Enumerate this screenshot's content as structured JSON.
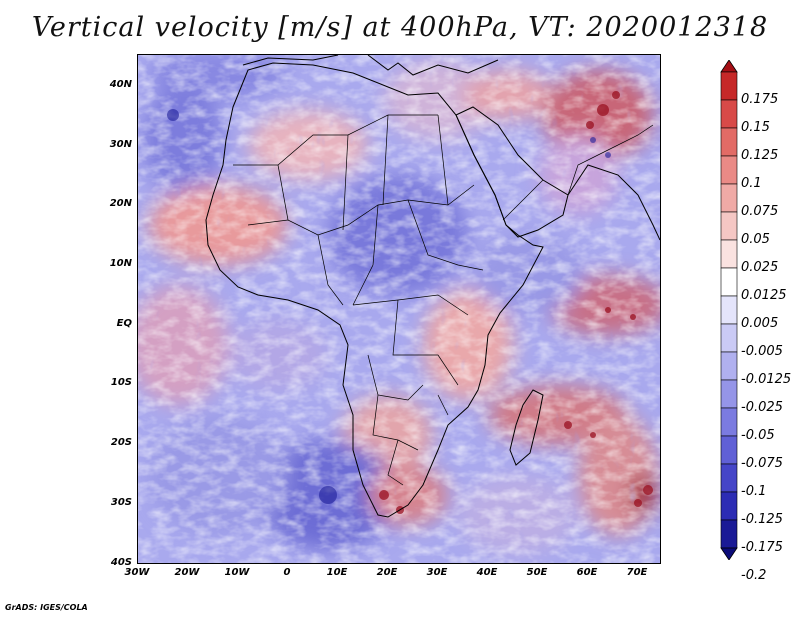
{
  "title": "Vertical velocity [m/s] at 400hPa, VT: 2020012318",
  "footer": "GrADS: IGES/COLA",
  "map": {
    "lon_range": [
      -30,
      75
    ],
    "lat_range": [
      -40,
      45
    ],
    "lat_labels": [
      "40N",
      "30N",
      "20N",
      "10N",
      "EQ",
      "10S",
      "20S",
      "30S",
      "40S"
    ],
    "lat_values": [
      40,
      30,
      20,
      10,
      0,
      -10,
      -20,
      -30,
      -40
    ],
    "lon_labels": [
      "30W",
      "20W",
      "10W",
      "0",
      "10E",
      "20E",
      "30E",
      "40E",
      "50E",
      "60E",
      "70E"
    ],
    "lon_values": [
      -30,
      -20,
      -10,
      0,
      10,
      20,
      30,
      40,
      50,
      60,
      70
    ]
  },
  "colorbar": {
    "labels": [
      "0.175",
      "0.15",
      "0.125",
      "0.1",
      "0.075",
      "0.05",
      "0.025",
      "0.0125",
      "0.005",
      "-0.005",
      "-0.0125",
      "-0.025",
      "-0.05",
      "-0.075",
      "-0.1",
      "-0.125",
      "-0.175",
      "-0.2"
    ],
    "colors": [
      "#a50f15",
      "#c62828",
      "#d84a48",
      "#e26b66",
      "#ea8a86",
      "#f0aaa6",
      "#f5c7c4",
      "#fae2e0",
      "#ffffff",
      "#e4e4fb",
      "#cacaf5",
      "#b0b0ef",
      "#9595e8",
      "#7b7be0",
      "#6060d6",
      "#4545c8",
      "#2c2cb4",
      "#1a1a96",
      "#0b0b78"
    ]
  }
}
